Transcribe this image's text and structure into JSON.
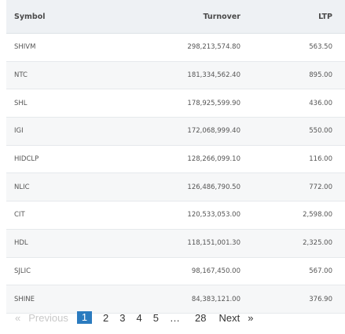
{
  "table": {
    "headers": {
      "symbol": "Symbol",
      "turnover": "Turnover",
      "ltp": "LTP"
    },
    "rows": [
      {
        "symbol": "SHIVM",
        "turnover": "298,213,574.80",
        "ltp": "563.50"
      },
      {
        "symbol": "NTC",
        "turnover": "181,334,562.40",
        "ltp": "895.00"
      },
      {
        "symbol": "SHL",
        "turnover": "178,925,599.90",
        "ltp": "436.00"
      },
      {
        "symbol": "IGI",
        "turnover": "172,068,999.40",
        "ltp": "550.00"
      },
      {
        "symbol": "HIDCLP",
        "turnover": "128,266,099.10",
        "ltp": "116.00"
      },
      {
        "symbol": "NLIC",
        "turnover": "126,486,790.50",
        "ltp": "772.00"
      },
      {
        "symbol": "CIT",
        "turnover": "120,533,053.00",
        "ltp": "2,598.00"
      },
      {
        "symbol": "HDL",
        "turnover": "118,151,001.30",
        "ltp": "2,325.00"
      },
      {
        "symbol": "SJLIC",
        "turnover": "98,167,450.00",
        "ltp": "567.00"
      },
      {
        "symbol": "SHINE",
        "turnover": "84,383,121.00",
        "ltp": "376.90"
      }
    ]
  },
  "pagination": {
    "prev_arrow": "«",
    "prev_label": "Previous",
    "current": "1",
    "pages": [
      "2",
      "3",
      "4",
      "5"
    ],
    "ellipsis": "…",
    "last": "28",
    "next_label": "Next",
    "next_arrow": "»",
    "active_color": "#2b7bbf"
  }
}
